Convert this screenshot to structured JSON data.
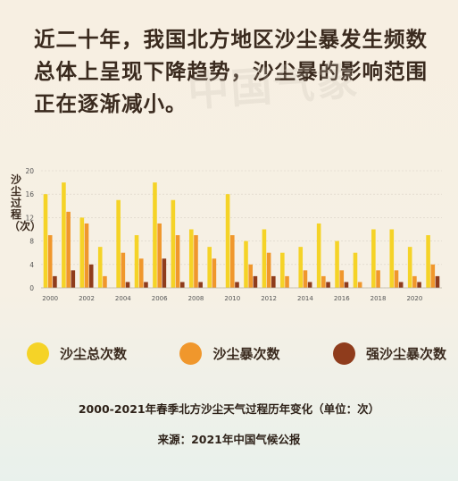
{
  "headline": "近二十年，我国北方地区沙尘暴发生频数总体上呈现下降趋势，沙尘暴的影响范围正在逐渐减小。",
  "watermark_text": "中国气象",
  "caption": "2000-2021年春季北方沙尘天气过程历年变化（单位：次）",
  "source": "来源：2021年中国气候公报",
  "chart_data": {
    "type": "bar",
    "title": "2000-2021年春季北方沙尘天气过程历年变化（单位：次）",
    "ylabel": "沙尘过程（次）",
    "xlabel": "",
    "ylim": [
      0,
      20
    ],
    "yticks": [
      0,
      4,
      8,
      12,
      16,
      20
    ],
    "grid": true,
    "legend_position": "bottom",
    "categories": [
      "2000",
      "2001",
      "2002",
      "2003",
      "2004",
      "2005",
      "2006",
      "2007",
      "2008",
      "2009",
      "2010",
      "2011",
      "2012",
      "2013",
      "2014",
      "2015",
      "2016",
      "2017",
      "2018",
      "2019",
      "2020",
      "2021"
    ],
    "xtick_labels": [
      "2000",
      "2002",
      "2004",
      "2006",
      "2008",
      "2010",
      "2012",
      "2014",
      "2016",
      "2018",
      "2020"
    ],
    "series": [
      {
        "name": "沙尘总次数",
        "color": "#f5d327",
        "values": [
          16,
          18,
          12,
          7,
          15,
          9,
          18,
          15,
          10,
          7,
          16,
          8,
          10,
          6,
          7,
          11,
          8,
          6,
          10,
          10,
          7,
          9
        ]
      },
      {
        "name": "沙尘暴次数",
        "color": "#f0972c",
        "values": [
          9,
          13,
          11,
          2,
          6,
          5,
          11,
          9,
          9,
          5,
          9,
          4,
          6,
          2,
          3,
          2,
          3,
          1,
          3,
          3,
          2,
          4
        ]
      },
      {
        "name": "强沙尘暴次数",
        "color": "#8f3c1c",
        "values": [
          2,
          3,
          4,
          0,
          1,
          1,
          5,
          1,
          1,
          0,
          1,
          2,
          2,
          0,
          1,
          1,
          1,
          0,
          0,
          1,
          1,
          2
        ]
      }
    ]
  }
}
